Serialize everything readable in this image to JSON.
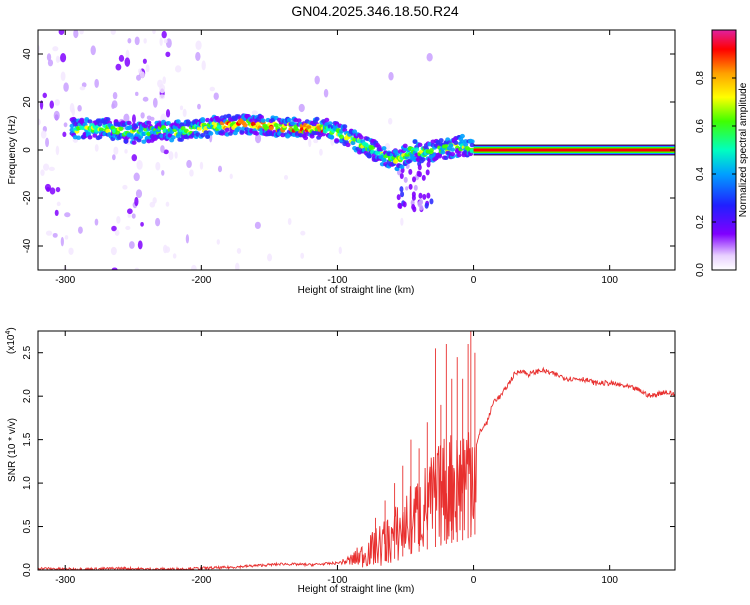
{
  "title": "GN04.2025.346.18.50.R24",
  "colors": {
    "line": "#e8302f",
    "axis": "#000000",
    "colorbar": [
      "#e020a0",
      "#ff0000",
      "#ffa000",
      "#ffff00",
      "#40ff00",
      "#00ffc0",
      "#00a0ff",
      "#2020ff",
      "#8000ff",
      "#e8d0ff",
      "#ffffff"
    ]
  },
  "chart_data": [
    {
      "type": "heatmap",
      "title": "",
      "xlabel": "Height of straight line (km)",
      "ylabel": "Frequency (Hz)",
      "xlim": [
        -320,
        148
      ],
      "ylim": [
        -50,
        50
      ],
      "x_ticks": [
        -300,
        -200,
        -100,
        0,
        100
      ],
      "x_tick_labels": [
        "-300",
        "-200",
        "-100",
        "0",
        "100"
      ],
      "y_ticks": [
        -40,
        -20,
        0,
        20,
        40
      ],
      "y_tick_labels": [
        "-40",
        "-20",
        "0",
        "20",
        "40"
      ],
      "ridge": {
        "description_series": "dominant frequency vs height",
        "x": [
          -290,
          -270,
          -250,
          -230,
          -210,
          -190,
          -170,
          -150,
          -130,
          -110,
          -95,
          -80,
          -65,
          -55,
          -45,
          -35,
          -25,
          -15,
          -8,
          0
        ],
        "y": [
          9,
          9,
          7,
          8,
          8,
          10,
          11,
          10,
          9,
          9,
          6,
          2,
          -3,
          -4,
          0,
          -1,
          0,
          1,
          2,
          0
        ]
      },
      "constant_band": {
        "x_start": 0,
        "x_end": 148,
        "frequency": 0
      },
      "colorbar": {
        "label": "Normalized spectral amplitude",
        "ticks": [
          0.0,
          0.2,
          0.4,
          0.6,
          0.8
        ],
        "tick_labels": [
          "0.0",
          "0.2",
          "0.4",
          "0.6",
          "0.8"
        ],
        "range": [
          0,
          1
        ]
      }
    },
    {
      "type": "line",
      "title": "",
      "xlabel": "Height of straight line (km)",
      "ylabel": "SNR (10 * v/v)",
      "exponent_label": "(x10",
      "exponent_power": "4",
      "exponent_close": ")",
      "xlim": [
        -320,
        148
      ],
      "ylim": [
        0,
        2.75
      ],
      "x_ticks": [
        -300,
        -200,
        -100,
        0,
        100
      ],
      "x_tick_labels": [
        "-300",
        "-200",
        "-100",
        "0",
        "100"
      ],
      "y_ticks": [
        0.0,
        0.5,
        1.0,
        1.5,
        2.0,
        2.5
      ],
      "y_tick_labels": [
        "0.0",
        "0.5",
        "1.0",
        "1.5",
        "2.0",
        "2.5"
      ],
      "series": [
        {
          "name": "SNR",
          "x": [
            -320,
            -300,
            -280,
            -260,
            -240,
            -220,
            -200,
            -180,
            -160,
            -140,
            -120,
            -100,
            -90,
            -80,
            -70,
            -60,
            -50,
            -40,
            -30,
            -20,
            -10,
            -5,
            0,
            5,
            10,
            15,
            20,
            30,
            35,
            40,
            50,
            60,
            70,
            80,
            90,
            100,
            110,
            120,
            130,
            140,
            148
          ],
          "values": [
            0.02,
            0.01,
            0.01,
            0.02,
            0.01,
            0.01,
            0.02,
            0.03,
            0.05,
            0.07,
            0.06,
            0.08,
            0.12,
            0.2,
            0.3,
            0.4,
            0.55,
            0.7,
            0.85,
            1.0,
            1.1,
            1.2,
            1.3,
            1.6,
            1.7,
            1.95,
            2.0,
            2.25,
            2.3,
            2.25,
            2.3,
            2.25,
            2.2,
            2.2,
            2.15,
            2.15,
            2.12,
            2.08,
            2.0,
            2.05,
            2.02
          ]
        }
      ],
      "spikes": {
        "x": [
          -72,
          -65,
          -58,
          -52,
          -46,
          -40,
          -34,
          -28,
          -24,
          -20,
          -16,
          -12,
          -8,
          -4,
          -2,
          1
        ],
        "values": [
          0.6,
          0.8,
          1.0,
          1.2,
          1.5,
          1.4,
          1.7,
          2.55,
          1.9,
          2.6,
          2.2,
          2.45,
          2.2,
          2.6,
          2.75,
          2.5
        ]
      }
    }
  ]
}
